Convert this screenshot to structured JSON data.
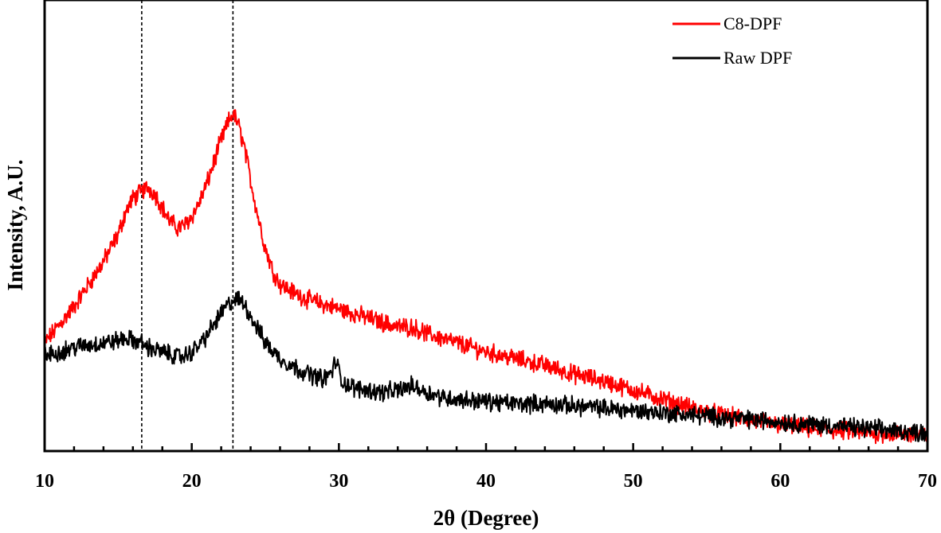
{
  "chart_data": {
    "type": "line",
    "title": "",
    "xlabel": "2θ (Degree)",
    "ylabel": "Intensity, A.U.",
    "xlim": [
      10,
      70
    ],
    "ylim": [
      0,
      100
    ],
    "x_ticks": [
      10,
      20,
      30,
      40,
      50,
      60,
      70
    ],
    "y_ticks_shown": false,
    "grid": false,
    "legend_position": "top-right",
    "reference_lines_x": [
      16.6,
      22.8
    ],
    "series": [
      {
        "name": "C8-DPF",
        "color": "#ff0000",
        "x": [
          10,
          11,
          12,
          13,
          14,
          15,
          15.5,
          16,
          16.6,
          17,
          17.5,
          18,
          18.5,
          19,
          19.5,
          20,
          20.5,
          21,
          21.5,
          22,
          22.5,
          22.8,
          23.2,
          23.6,
          24,
          24.5,
          25,
          25.5,
          26,
          27,
          28,
          29,
          30,
          31,
          32,
          33,
          34,
          35,
          36,
          37,
          38,
          39,
          40,
          42,
          44,
          46,
          48,
          50,
          52,
          54,
          56,
          58,
          60,
          62,
          64,
          66,
          68,
          70
        ],
        "y": [
          24,
          28,
          32,
          37,
          42,
          48,
          53,
          56,
          57.5,
          58.5,
          57,
          54,
          51,
          49.5,
          50,
          52,
          55,
          59,
          64,
          69,
          73,
          75,
          72,
          67,
          60,
          52,
          45,
          40,
          37,
          35,
          33.5,
          32.5,
          31.5,
          30.5,
          29.5,
          28.5,
          27.5,
          27.5,
          26,
          25,
          24,
          23,
          22,
          20.5,
          19,
          17,
          15.5,
          13.5,
          11.5,
          9.5,
          8,
          6.8,
          5.8,
          5,
          4.5,
          4,
          3.7,
          3.5
        ]
      },
      {
        "name": "Raw DPF",
        "color": "#000000",
        "x": [
          10,
          11,
          12,
          13,
          14,
          15,
          15.5,
          16,
          16.6,
          17,
          17.5,
          18,
          18.5,
          19,
          19.5,
          20,
          20.5,
          21,
          21.5,
          22,
          22.5,
          22.8,
          23.2,
          23.6,
          24,
          24.5,
          25,
          26,
          27,
          28,
          29,
          29.5,
          29.8,
          30.2,
          31,
          32,
          33,
          34,
          35,
          36,
          37,
          38,
          40,
          42,
          44,
          46,
          48,
          50,
          52,
          54,
          56,
          58,
          60,
          62,
          64,
          66,
          68,
          70
        ],
        "y": [
          21,
          22,
          23,
          23.5,
          24,
          24.5,
          25,
          24.5,
          24,
          23,
          22.5,
          22,
          21.5,
          21,
          21,
          22,
          23.5,
          25.5,
          28,
          30.5,
          32.5,
          33.5,
          33.5,
          32.5,
          30,
          27,
          24,
          20.5,
          18.5,
          17,
          16,
          17.5,
          20,
          15.5,
          14,
          13.5,
          13,
          13.5,
          14.5,
          13,
          12,
          11.5,
          11,
          10.5,
          10.5,
          10,
          9.5,
          9,
          8.5,
          8,
          7.5,
          7,
          6.5,
          6,
          5.5,
          5,
          4.5,
          4
        ]
      }
    ]
  }
}
